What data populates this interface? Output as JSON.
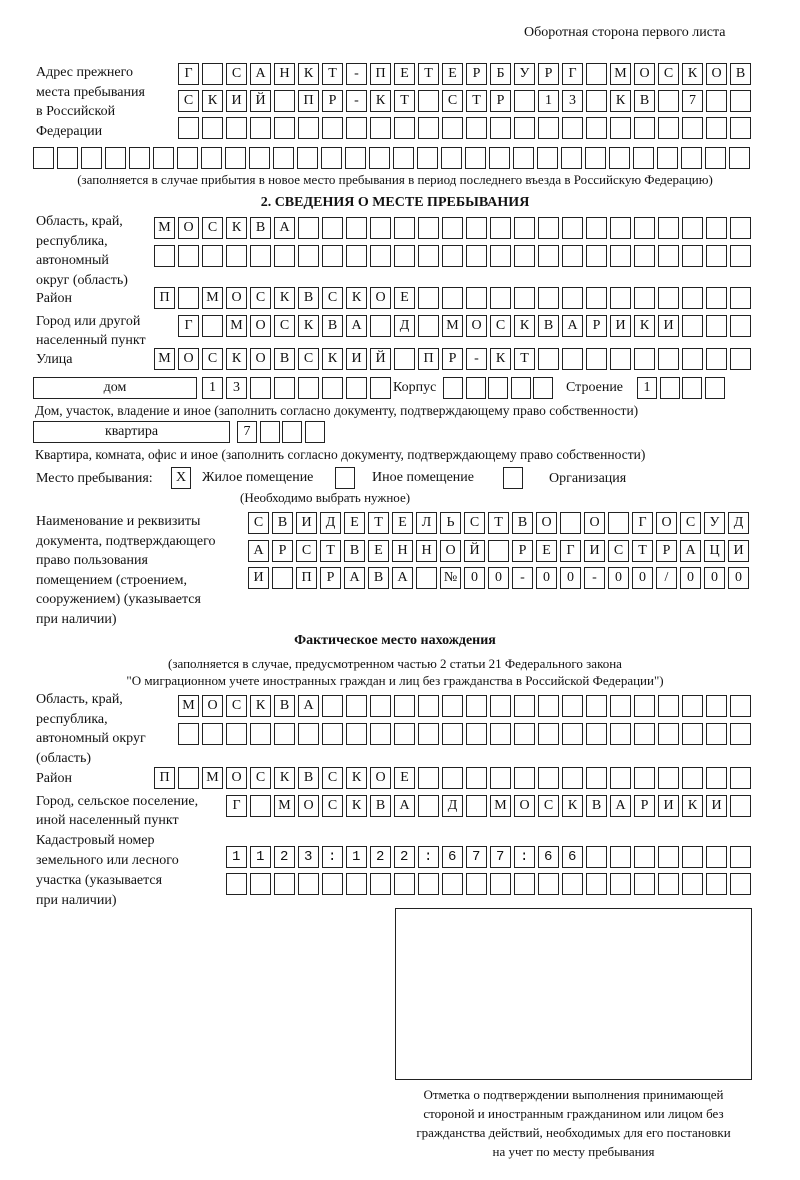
{
  "header": "Оборотная сторона первого листа",
  "previous_address": {
    "label": "Адрес прежнего\nместа пребывания\nв Российской\nФедерации",
    "rows": [
      "Г САНКТ-ПЕТЕРБУРГ МОСКОВ",
      "СКИЙ ПР-КТ СТР 13 КВ 7",
      "",
      ""
    ],
    "note": "(заполняется в случае прибытия в новое место пребывания в период последнего въезда в Российскую Федерацию)"
  },
  "section2": {
    "title": "2. СВЕДЕНИЯ О МЕСТЕ ПРЕБЫВАНИЯ",
    "region_label": "Область, край,\nреспублика,\nавтономный\nокруг (область)",
    "region_rows": [
      "МОСКВА",
      ""
    ],
    "district_label": "Район",
    "district": "П МОСКВСКОЕ",
    "city_label": "Город или другой\nнаселенный пункт",
    "city": "Г МОСКВА Д МОСКВАРИКИ",
    "street_label": "Улица",
    "street": "МОСКОВСКИЙ ПР-КТ",
    "house_type": "дом",
    "house": "13",
    "korpus_label": "Корпус",
    "korpus": "",
    "building_label": "Строение",
    "building": "1",
    "house_note": "Дом, участок, владение и иное (заполнить согласно документу, подтверждающему право собственности)",
    "flat_type": "квартира",
    "flat": "7",
    "flat_note": "Квартира, комната, офис и иное (заполнить согласно документу, подтверждающему право собственности)",
    "stay_place_label": "Место пребывания:",
    "options": [
      {
        "label": "Жилое помещение",
        "checked": true,
        "mark": "X"
      },
      {
        "label": "Иное помещение",
        "checked": false
      },
      {
        "label": "Организация",
        "checked": false
      }
    ],
    "select_note": "(Необходимо выбрать нужное)",
    "document_label": "Наименование и реквизиты\nдокумента, подтверждающего\nправо пользования\nпомещением (строением,\nсооружением) (указывается\nпри наличии)",
    "document_rows": [
      "СВИДЕТЕЛЬСТВО О ГОСУД",
      "АРСТВЕННОЙ РЕГИСТРАЦИ",
      "И ПРАВА №00-00-00/000"
    ]
  },
  "actual": {
    "title": "Фактическое место нахождения",
    "note1": "(заполняется в случае, предусмотренном частью 2 статьи 21 Федерального закона",
    "note2": "\"О миграционном учете иностранных граждан и лиц без гражданства в Российской Федерации\")",
    "region_label": "Область, край,\nреспублика,\nавтономный округ\n(область)",
    "region_rows": [
      "МОСКВА",
      ""
    ],
    "district_label": "Район",
    "district": "П МОСКВСКОЕ",
    "city_label": "Город, сельское поселение,\nиной населенный пункт",
    "city": "Г МОСКВА Д МОСКВАРИКИ",
    "cadastral_label": "Кадастровый номер\nземельного или лесного\nучастка (указывается\nпри наличии)",
    "cadastral_rows": [
      "1123:122:677:66",
      ""
    ]
  },
  "stamp_caption": "Отметка о подтверждении выполнения принимающей\nстороной и иностранным гражданином или лицом без\nгражданства действий, необходимых для его постановки\nна учет по месту пребывания"
}
